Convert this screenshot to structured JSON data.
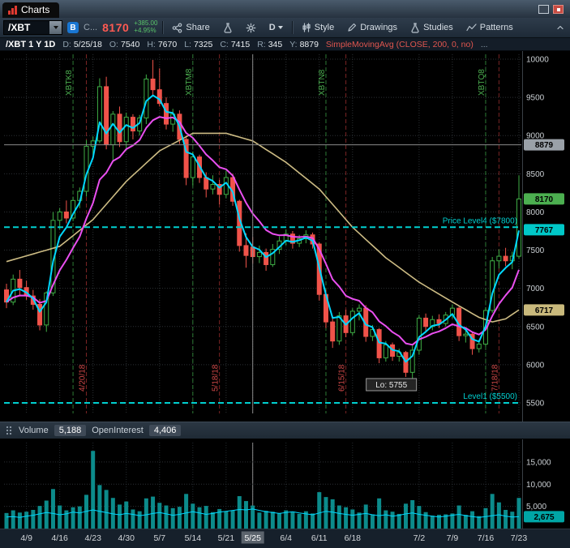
{
  "titlebar": {
    "tab_label": "Charts"
  },
  "toolbar": {
    "symbol": "/XBT",
    "badge_b": "B",
    "truncated": "C...",
    "price": "8170",
    "change": "+385.00",
    "change_pct": "+4.95%",
    "share": "Share",
    "timeframe": "D",
    "style": "Style",
    "drawings": "Drawings",
    "studies": "Studies",
    "patterns": "Patterns"
  },
  "infobar": {
    "symbol_tf": "/XBT 1 Y 1D",
    "fields": [
      {
        "k": "D:",
        "v": "5/25/18"
      },
      {
        "k": "O:",
        "v": "7540"
      },
      {
        "k": "H:",
        "v": "7670"
      },
      {
        "k": "L:",
        "v": "7325"
      },
      {
        "k": "C:",
        "v": "7415"
      },
      {
        "k": "R:",
        "v": "345"
      },
      {
        "k": "Y:",
        "v": "8879"
      }
    ],
    "study": "SimpleMovingAvg (CLOSE, 200, 0, no)",
    "ellipsis": "..."
  },
  "volume_pane": {
    "volume_label": "Volume",
    "volume_value": "5,188",
    "oi_label": "OpenInterest",
    "oi_value": "4,406"
  },
  "colors": {
    "candle_up": "#3fae46",
    "candle_down": "#f0534a",
    "ma_fast": "#00d8ff",
    "ma_slow": "#ea4ff0",
    "sma200": "#cdbc84",
    "level_line": "#00cfcf",
    "expiry_line": "#2d7a35",
    "expiry_text": "#4caf50",
    "event_line": "#7a2424",
    "event_text": "#d04848",
    "volume_bar": "#0c8b8b",
    "oi_line": "#00d8ff",
    "crosshair": "#8a8a8a",
    "grid": "#2c3135",
    "axis_text": "#cbd0d4",
    "date_highlight_bg": "#5c646d"
  },
  "chart_data": {
    "type": "candlestick",
    "title": "/XBT 1 Y 1D",
    "price_axis": {
      "min": 5500,
      "max": 10000,
      "ticks": [
        5500,
        6000,
        6500,
        7000,
        7500,
        8000,
        8500,
        9000,
        9500,
        10000
      ]
    },
    "volume_axis": {
      "max": 19000,
      "ticks": [
        5000,
        10000,
        15000
      ]
    },
    "columns": [
      "date",
      "open",
      "high",
      "low",
      "close",
      "volume",
      "open_interest"
    ],
    "candles": [
      [
        "4/4",
        6980,
        7060,
        6740,
        6820,
        3500,
        2600
      ],
      [
        "4/5",
        6820,
        7180,
        6780,
        7120,
        4100,
        2700
      ],
      [
        "4/6",
        7120,
        7240,
        6900,
        7010,
        3600,
        2500
      ],
      [
        "4/9",
        7010,
        7100,
        6850,
        6900,
        3800,
        2800
      ],
      [
        "4/10",
        6900,
        6980,
        6720,
        6790,
        4200,
        3000
      ],
      [
        "4/11",
        6790,
        6860,
        6450,
        6520,
        5100,
        3300
      ],
      [
        "4/12",
        6520,
        6960,
        6430,
        6940,
        6300,
        3600
      ],
      [
        "4/13",
        6940,
        8000,
        6900,
        7890,
        8900,
        3400
      ],
      [
        "4/16",
        7890,
        8050,
        7770,
        8000,
        5200,
        3100
      ],
      [
        "4/17",
        8000,
        8150,
        7850,
        7920,
        4100,
        3300
      ],
      [
        "4/18",
        7920,
        8200,
        7880,
        8150,
        4800,
        3700
      ],
      [
        "4/19",
        8150,
        8320,
        8050,
        8270,
        5000,
        3500
      ],
      [
        "4/20",
        8270,
        8940,
        8200,
        8860,
        7600,
        3900
      ],
      [
        "4/23",
        8860,
        8990,
        8750,
        8930,
        17500,
        4200
      ],
      [
        "4/24",
        8930,
        9750,
        8900,
        9640,
        9800,
        3900
      ],
      [
        "4/25",
        9640,
        9770,
        8820,
        8880,
        8700,
        3600
      ],
      [
        "4/26",
        8880,
        9320,
        8650,
        9280,
        6900,
        3300
      ],
      [
        "4/27",
        9280,
        9380,
        8850,
        8920,
        5400,
        3100
      ],
      [
        "4/30",
        8920,
        9300,
        8800,
        9240,
        6100,
        3400
      ],
      [
        "5/1",
        9240,
        9280,
        8950,
        9060,
        4300,
        3200
      ],
      [
        "5/2",
        9060,
        9270,
        9000,
        9230,
        3900,
        2900
      ],
      [
        "5/3",
        9230,
        9800,
        9150,
        9740,
        6800,
        3100
      ],
      [
        "5/4",
        9740,
        9990,
        9520,
        9600,
        7200,
        3400
      ],
      [
        "5/7",
        9600,
        9880,
        9380,
        9420,
        5800,
        3600
      ],
      [
        "5/8",
        9420,
        9500,
        9080,
        9150,
        5200,
        3300
      ],
      [
        "5/9",
        9150,
        9350,
        9050,
        9280,
        4600,
        3000
      ],
      [
        "5/10",
        9280,
        9330,
        8890,
        8950,
        4900,
        3200
      ],
      [
        "5/11",
        8950,
        9000,
        8350,
        8450,
        7800,
        3500
      ],
      [
        "5/14",
        8450,
        8790,
        8350,
        8720,
        5600,
        3800
      ],
      [
        "5/15",
        8720,
        8750,
        8380,
        8450,
        4800,
        3500
      ],
      [
        "5/16",
        8450,
        8520,
        8190,
        8300,
        5100,
        3200
      ],
      [
        "5/17",
        8300,
        8480,
        8230,
        8360,
        3700,
        3400
      ],
      [
        "5/18",
        8360,
        8420,
        8100,
        8230,
        4400,
        3700
      ],
      [
        "5/21",
        8230,
        8540,
        8180,
        8450,
        3900,
        3900
      ],
      [
        "5/22",
        8450,
        8500,
        8080,
        8140,
        4100,
        4100
      ],
      [
        "5/23",
        8140,
        8160,
        7480,
        7560,
        7300,
        4300
      ],
      [
        "5/24",
        7560,
        7720,
        7270,
        7430,
        6200,
        4200
      ],
      [
        "5/25",
        7540,
        7670,
        7325,
        7415,
        5188,
        4406
      ],
      [
        "5/29",
        7415,
        7560,
        7330,
        7470,
        3600,
        4100
      ],
      [
        "5/30",
        7470,
        7520,
        7230,
        7310,
        4000,
        3800
      ],
      [
        "5/31",
        7310,
        7580,
        7280,
        7510,
        3800,
        3600
      ],
      [
        "6/1",
        7510,
        7680,
        7450,
        7620,
        3500,
        3400
      ],
      [
        "6/4",
        7620,
        7770,
        7560,
        7710,
        4100,
        3600
      ],
      [
        "6/5",
        7710,
        7750,
        7520,
        7590,
        3700,
        3800
      ],
      [
        "6/6",
        7590,
        7700,
        7540,
        7650,
        3300,
        3500
      ],
      [
        "6/7",
        7650,
        7760,
        7590,
        7700,
        3900,
        3300
      ],
      [
        "6/8",
        7700,
        7730,
        7520,
        7580,
        3400,
        3100
      ],
      [
        "6/11",
        7580,
        7600,
        6840,
        6920,
        8200,
        3500
      ],
      [
        "6/12",
        6920,
        6980,
        6480,
        6560,
        7100,
        3900
      ],
      [
        "6/13",
        6560,
        6640,
        6220,
        6310,
        6600,
        3700
      ],
      [
        "6/14",
        6310,
        6690,
        6260,
        6640,
        5200,
        3400
      ],
      [
        "6/15",
        6640,
        6720,
        6360,
        6420,
        4800,
        3200
      ],
      [
        "6/18",
        6420,
        6740,
        6380,
        6700,
        4300,
        3000
      ],
      [
        "6/19",
        6700,
        6790,
        6580,
        6740,
        3600,
        3200
      ],
      [
        "6/20",
        6740,
        6780,
        6300,
        6370,
        5400,
        3400
      ],
      [
        "6/21",
        6370,
        6520,
        6310,
        6460,
        3200,
        3100
      ],
      [
        "6/22",
        6460,
        6480,
        6020,
        6090,
        6800,
        2900
      ],
      [
        "6/25",
        6090,
        6310,
        6040,
        6260,
        4100,
        3100
      ],
      [
        "6/26",
        6260,
        6290,
        6050,
        6110,
        3800,
        2800
      ],
      [
        "6/27",
        6110,
        6210,
        6040,
        6160,
        3300,
        3000
      ],
      [
        "6/28",
        6160,
        6180,
        5840,
        5900,
        5600,
        3300
      ],
      [
        "6/29",
        5900,
        6250,
        5755,
        6190,
        6400,
        3500
      ],
      [
        "7/2",
        6190,
        6650,
        6130,
        6610,
        5100,
        3200
      ],
      [
        "7/3",
        6610,
        6670,
        6430,
        6500,
        3700,
        3000
      ],
      [
        "7/4",
        6500,
        6640,
        6450,
        6590,
        2900,
        2800
      ],
      [
        "7/5",
        6590,
        6660,
        6480,
        6540,
        3100,
        2600
      ],
      [
        "7/6",
        6540,
        6690,
        6500,
        6650,
        3200,
        2800
      ],
      [
        "7/9",
        6650,
        6790,
        6600,
        6740,
        3400,
        3000
      ],
      [
        "7/10",
        6740,
        6760,
        6310,
        6380,
        5200,
        3200
      ],
      [
        "7/11",
        6380,
        6460,
        6290,
        6400,
        3100,
        2900
      ],
      [
        "7/12",
        6400,
        6420,
        6130,
        6210,
        3900,
        2700
      ],
      [
        "7/13",
        6210,
        6330,
        6160,
        6270,
        2800,
        2500
      ],
      [
        "7/16",
        6270,
        6750,
        6240,
        6710,
        4600,
        2700
      ],
      [
        "7/17",
        6710,
        7410,
        6680,
        7360,
        7800,
        2900
      ],
      [
        "7/18",
        7360,
        7510,
        7260,
        7420,
        5900,
        3100
      ],
      [
        "7/19",
        7420,
        7530,
        7290,
        7360,
        4200,
        2800
      ],
      [
        "7/20",
        7360,
        7480,
        7250,
        7420,
        3800,
        2600
      ],
      [
        "7/23",
        7420,
        8480,
        7390,
        8170,
        6900,
        2675
      ]
    ],
    "x_ticks": [
      {
        "i": 3,
        "label": "4/9"
      },
      {
        "i": 8,
        "label": "4/16"
      },
      {
        "i": 13,
        "label": "4/23"
      },
      {
        "i": 18,
        "label": "4/30"
      },
      {
        "i": 23,
        "label": "5/7"
      },
      {
        "i": 28,
        "label": "5/14"
      },
      {
        "i": 33,
        "label": "5/21"
      },
      {
        "i": 37,
        "label": "5/25",
        "highlight": true
      },
      {
        "i": 42,
        "label": "6/4"
      },
      {
        "i": 47,
        "label": "6/11"
      },
      {
        "i": 52,
        "label": "6/18"
      },
      {
        "i": 62,
        "label": "7/2"
      },
      {
        "i": 67,
        "label": "7/9"
      },
      {
        "i": 72,
        "label": "7/16"
      },
      {
        "i": 77,
        "label": "7/23"
      }
    ],
    "expiration_lines": [
      {
        "i": 10,
        "label": "XBTK8"
      },
      {
        "i": 28,
        "label": "XBTM8"
      },
      {
        "i": 48,
        "label": "XBTN8"
      },
      {
        "i": 72,
        "label": "XBTQ8"
      }
    ],
    "event_lines": [
      {
        "i": 12,
        "label": "4/20/18"
      },
      {
        "i": 32,
        "label": "5/18/18"
      },
      {
        "i": 51,
        "label": "6/15/18"
      },
      {
        "i": 74,
        "label": "7/18/18"
      }
    ],
    "price_levels": [
      {
        "price": 7800,
        "label": "Price Level4 ($7800)"
      },
      {
        "price": 5500,
        "label": "Level1 ($5500)"
      }
    ],
    "low_marker": {
      "i": 61,
      "price": 5755,
      "label": "Lo: 5755"
    },
    "crosshair": {
      "i": 37,
      "price": 8879
    },
    "axis_badges": [
      {
        "price": 8879,
        "label": "8879",
        "color": "#9aa1a8"
      },
      {
        "price": 8170,
        "label": "8170",
        "color": "#4caf50"
      },
      {
        "price": 7767,
        "label": "7767",
        "color": "#00c8c8"
      },
      {
        "price": 6717,
        "label": "6717",
        "color": "#c9b97c"
      }
    ],
    "volume_badge": {
      "value": 2675,
      "label": "2,675",
      "color": "#00a5a5"
    },
    "moving_averages": {
      "fast_period": 3,
      "slow_period": 9,
      "study_label": "SimpleMovingAvg (CLOSE, 200, 0, no)"
    },
    "sma200_anchors": [
      [
        0,
        7350
      ],
      [
        8,
        7550
      ],
      [
        13,
        7900
      ],
      [
        18,
        8400
      ],
      [
        23,
        8800
      ],
      [
        28,
        9030
      ],
      [
        33,
        9030
      ],
      [
        37,
        8930
      ],
      [
        42,
        8650
      ],
      [
        47,
        8300
      ],
      [
        52,
        7800
      ],
      [
        57,
        7400
      ],
      [
        62,
        7080
      ],
      [
        67,
        6820
      ],
      [
        71,
        6620
      ],
      [
        73,
        6560
      ],
      [
        75,
        6600
      ],
      [
        77,
        6717
      ]
    ]
  }
}
